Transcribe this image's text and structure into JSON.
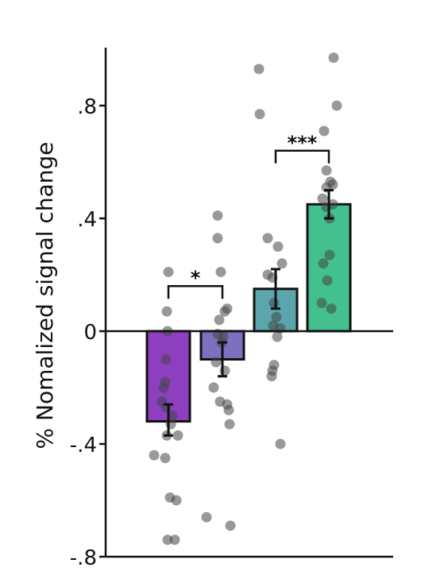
{
  "chart_data": {
    "type": "bar",
    "ylabel": "% Nomalized signal change",
    "ylim": [
      -0.8,
      1.0
    ],
    "yticks": [
      {
        "value": 0.8,
        "label": ".8"
      },
      {
        "value": 0.4,
        "label": ".4"
      },
      {
        "value": 0.0,
        "label": "0"
      },
      {
        "value": -0.4,
        "label": "-.4"
      },
      {
        "value": -0.8,
        "label": "-.8"
      }
    ],
    "grid": false,
    "bars": [
      {
        "value": -0.32,
        "err_low": -0.37,
        "err_high": -0.26,
        "color": "#8e3fc0",
        "points": [
          0.21,
          0.07,
          0.0,
          -0.1,
          -0.18,
          -0.2,
          -0.25,
          -0.27,
          -0.3,
          -0.33,
          -0.37,
          -0.37,
          -0.44,
          -0.45,
          -0.59,
          -0.6,
          -0.74,
          -0.74
        ]
      },
      {
        "value": -0.1,
        "err_low": -0.16,
        "err_high": -0.04,
        "color": "#7f6fc0",
        "points": [
          0.41,
          0.33,
          0.21,
          0.08,
          0.07,
          0.04,
          -0.01,
          -0.02,
          -0.04,
          -0.11,
          -0.14,
          -0.2,
          -0.25,
          -0.26,
          -0.28,
          -0.33,
          -0.66,
          -0.69
        ]
      },
      {
        "value": 0.15,
        "err_low": 0.08,
        "err_high": 0.22,
        "color": "#5ba6ad",
        "points": [
          0.93,
          0.77,
          0.33,
          0.3,
          0.24,
          0.2,
          0.19,
          0.1,
          0.05,
          0.02,
          0.01,
          -0.02,
          -0.12,
          -0.14,
          -0.16,
          -0.4
        ]
      },
      {
        "value": 0.45,
        "err_low": 0.4,
        "err_high": 0.5,
        "color": "#43c08d",
        "points": [
          0.97,
          0.8,
          0.71,
          0.57,
          0.53,
          0.52,
          0.51,
          0.47,
          0.45,
          0.44,
          0.4,
          0.27,
          0.24,
          0.18,
          0.1,
          0.08
        ]
      }
    ],
    "significance": [
      {
        "from": 0,
        "to": 1,
        "label": "*",
        "y": 0.16
      },
      {
        "from": 2,
        "to": 3,
        "label": "***",
        "y": 0.64
      }
    ]
  }
}
